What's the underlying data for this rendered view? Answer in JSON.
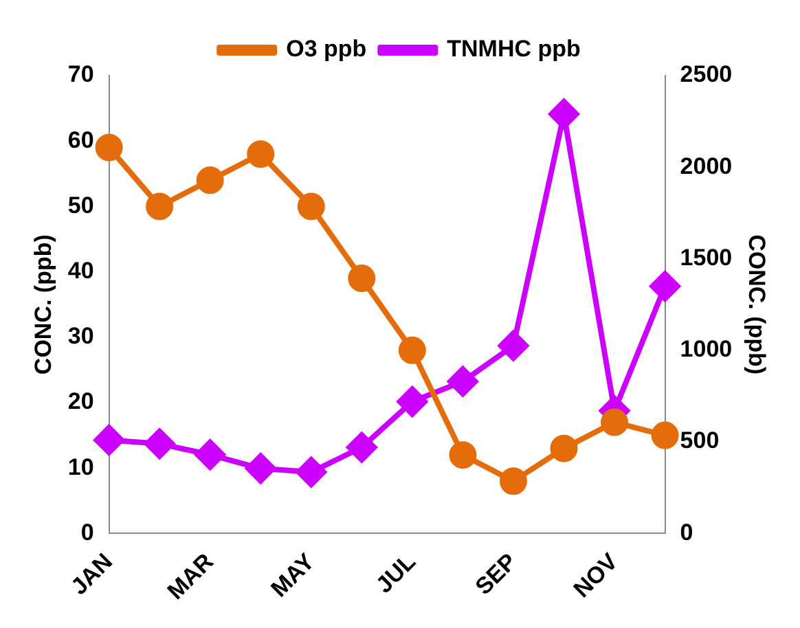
{
  "chart_data": {
    "type": "line",
    "categories": [
      "JAN",
      null,
      "MAR",
      null,
      "MAY",
      null,
      "JUL",
      null,
      "SEP",
      null,
      "NOV",
      null
    ],
    "series": [
      {
        "name": "O3 ppb",
        "color": "#e46c0a",
        "marker": "circle",
        "values": [
          59,
          50,
          54,
          58,
          50,
          39,
          28,
          12,
          8,
          13,
          17,
          15
        ]
      },
      {
        "name": "TNMHC ppb",
        "color": "#cc00ff",
        "marker": "diamond",
        "axis": "y2",
        "values": [
          510,
          490,
          430,
          355,
          335,
          470,
          720,
          830,
          1025,
          2290,
          670,
          1350
        ]
      }
    ],
    "ylabel": "CONC. (ppb)",
    "y2label": "CONC. (ppb)",
    "ylim": [
      0,
      70
    ],
    "yticks": [
      0,
      10,
      20,
      30,
      40,
      50,
      60,
      70
    ],
    "y2lim": [
      0,
      2500
    ],
    "y2ticks": [
      0,
      500,
      1000,
      1500,
      2000,
      2500
    ],
    "legend": "top",
    "grid": false
  }
}
